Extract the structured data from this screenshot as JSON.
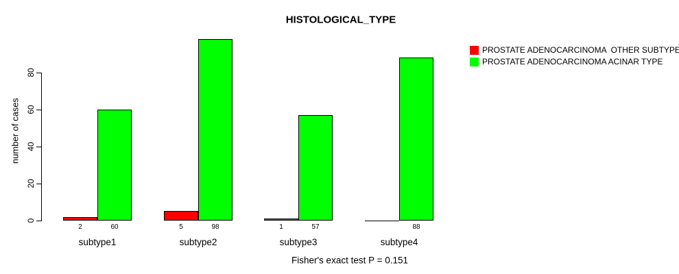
{
  "chart_data": {
    "type": "bar",
    "title": "HISTOLOGICAL_TYPE",
    "ylabel": "number of cases",
    "xlabel": "",
    "categories": [
      "subtype1",
      "subtype2",
      "subtype3",
      "subtype4"
    ],
    "series": [
      {
        "name": "PROSTATE ADENOCARCINOMA  OTHER SUBTYPE",
        "color": "#ff0000",
        "values": [
          2,
          5,
          1,
          0
        ]
      },
      {
        "name": "PROSTATE ADENOCARCINOMA ACINAR TYPE",
        "color": "#00ff00",
        "values": [
          60,
          98,
          57,
          88
        ]
      }
    ],
    "yticks": [
      0,
      20,
      40,
      60,
      80
    ],
    "ylim": [
      0,
      100
    ],
    "grid": false,
    "legend_position": "top-right",
    "bar_value_labels": true,
    "hide_zero_value_labels": true,
    "annotation": "Fisher's exact test P = 0.151"
  }
}
